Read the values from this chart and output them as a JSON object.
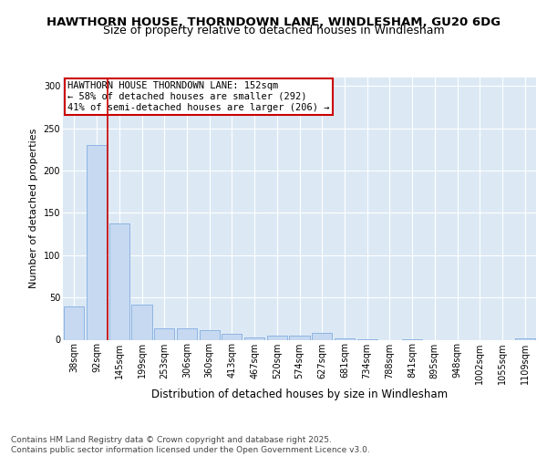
{
  "title1": "HAWTHORN HOUSE, THORNDOWN LANE, WINDLESHAM, GU20 6DG",
  "title2": "Size of property relative to detached houses in Windlesham",
  "xlabel": "Distribution of detached houses by size in Windlesham",
  "ylabel": "Number of detached properties",
  "categories": [
    "38sqm",
    "92sqm",
    "145sqm",
    "199sqm",
    "253sqm",
    "306sqm",
    "360sqm",
    "413sqm",
    "467sqm",
    "520sqm",
    "574sqm",
    "627sqm",
    "681sqm",
    "734sqm",
    "788sqm",
    "841sqm",
    "895sqm",
    "948sqm",
    "1002sqm",
    "1055sqm",
    "1109sqm"
  ],
  "values": [
    39,
    230,
    137,
    42,
    13,
    13,
    11,
    7,
    3,
    5,
    5,
    8,
    2,
    1,
    0,
    1,
    0,
    0,
    0,
    0,
    2
  ],
  "bar_color": "#c6d9f1",
  "bar_edge_color": "#8db4e2",
  "vline_color": "#cc0000",
  "vline_index": 2,
  "annotation_text": "HAWTHORN HOUSE THORNDOWN LANE: 152sqm\n← 58% of detached houses are smaller (292)\n41% of semi-detached houses are larger (206) →",
  "annotation_box_facecolor": "white",
  "annotation_box_edgecolor": "#cc0000",
  "footer_text": "Contains HM Land Registry data © Crown copyright and database right 2025.\nContains public sector information licensed under the Open Government Licence v3.0.",
  "bg_color": "#ffffff",
  "plot_bg_color": "#dce9f5",
  "grid_color": "#ffffff",
  "ylim": [
    0,
    310
  ],
  "yticks": [
    0,
    50,
    100,
    150,
    200,
    250,
    300
  ],
  "title1_fontsize": 9.5,
  "title2_fontsize": 9,
  "xlabel_fontsize": 8.5,
  "ylabel_fontsize": 8,
  "tick_fontsize": 7,
  "annotation_fontsize": 7.5,
  "footer_fontsize": 6.5
}
